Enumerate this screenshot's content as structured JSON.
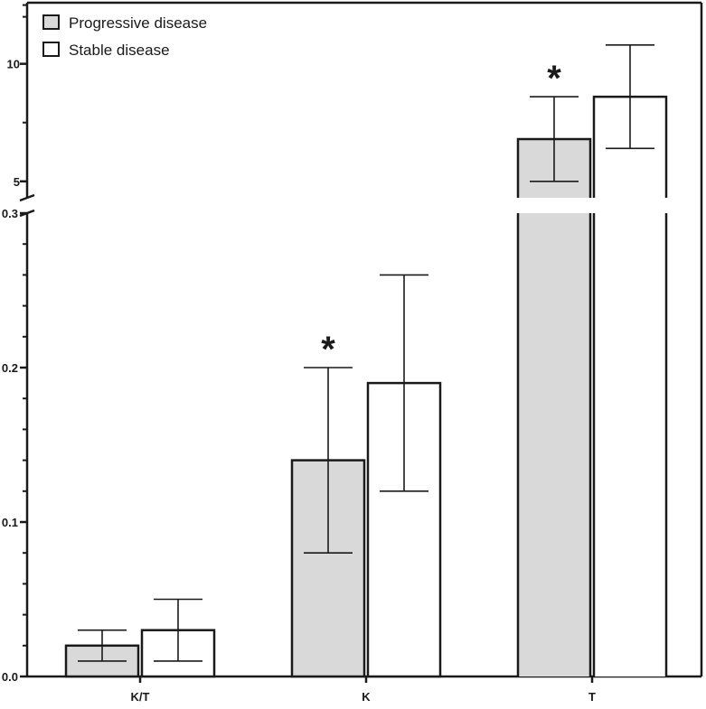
{
  "chart_data": {
    "type": "bar",
    "categories": [
      "K/T",
      "K",
      "T"
    ],
    "series": [
      {
        "name": "Progressive disease",
        "values": [
          0.02,
          0.14,
          6.8
        ],
        "error_low": [
          0.01,
          0.08,
          5.0
        ],
        "error_high": [
          0.03,
          0.2,
          8.6
        ]
      },
      {
        "name": "Stable disease",
        "values": [
          0.03,
          0.19,
          8.6
        ],
        "error_low": [
          0.01,
          0.12,
          6.4
        ],
        "error_high": [
          0.05,
          0.26,
          10.8
        ]
      }
    ],
    "axis_break": true,
    "lower_segment": {
      "ylim": [
        0,
        0.3
      ],
      "ticks": [
        "0.0",
        "0.1",
        "0.2",
        "0.3"
      ]
    },
    "upper_segment": {
      "ylim": [
        4.3,
        12.6
      ],
      "ticks": [
        "5",
        "10"
      ]
    },
    "significance": [
      {
        "category": "K",
        "series": "Progressive disease",
        "label": "*"
      },
      {
        "category": "T",
        "series": "Progressive disease",
        "label": "*"
      }
    ],
    "legend": {
      "position": "top-left"
    },
    "colors": {
      "Progressive disease": "#d9d9d9",
      "Stable disease": "#ffffff",
      "stroke": "#1a1a1a"
    },
    "grid": false,
    "title": "",
    "xlabel": "",
    "ylabel": ""
  }
}
